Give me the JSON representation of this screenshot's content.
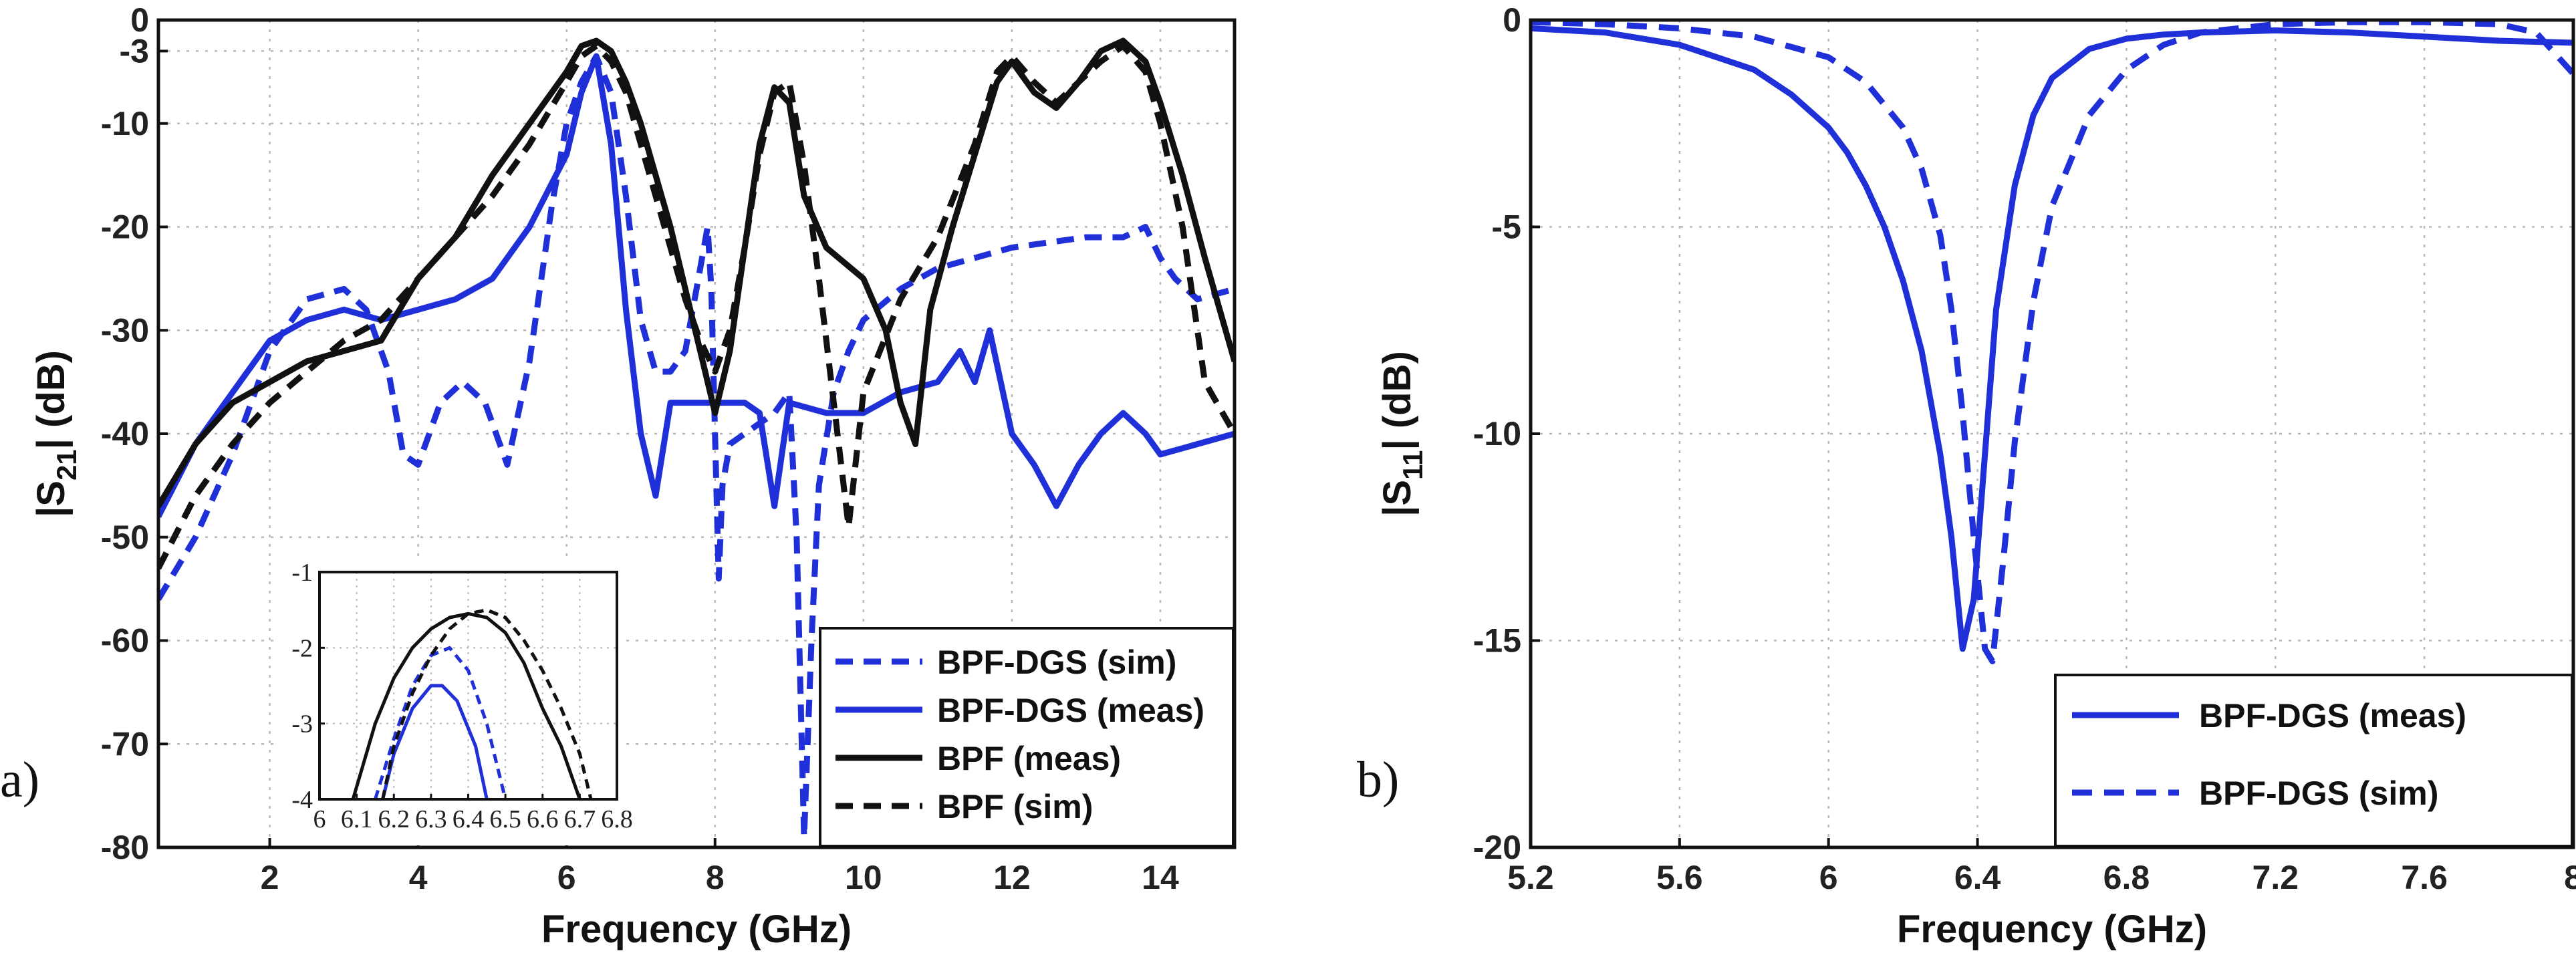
{
  "figure": {
    "panel_a_label": "a)",
    "panel_b_label": "b)",
    "colors": {
      "blue": "#2030d8",
      "black": "#111111",
      "grid": "#b8b8b8"
    }
  },
  "chart_data": [
    {
      "type": "line",
      "id": "s21",
      "title": "",
      "xlabel": "Frequency (GHz)",
      "ylabel": "|S21| (dB)",
      "xlim": [
        0.5,
        15
      ],
      "ylim": [
        -80,
        0
      ],
      "xticks": [
        2,
        4,
        6,
        8,
        10,
        12,
        14
      ],
      "yticks": [
        0,
        -3,
        -10,
        -20,
        -30,
        -40,
        -50,
        -60,
        -70,
        -80
      ],
      "grid": true,
      "legend_position": "bottom-right",
      "series": [
        {
          "name": "BPF-DGS (sim)",
          "color": "#2030d8",
          "dash": true,
          "x": [
            0.5,
            1,
            1.5,
            2,
            2.5,
            3,
            3.3,
            3.6,
            3.8,
            4,
            4.3,
            4.6,
            4.9,
            5.2,
            5.5,
            5.8,
            6.0,
            6.2,
            6.4,
            6.6,
            6.8,
            7.0,
            7.2,
            7.4,
            7.6,
            7.8,
            7.9,
            7.95,
            8.05,
            8.1,
            8.2,
            8.4,
            8.6,
            8.8,
            9,
            9.1,
            9.2,
            9.3,
            9.4,
            9.6,
            9.8,
            10,
            10.5,
            11,
            11.5,
            12,
            12.5,
            13,
            13.5,
            13.8,
            14,
            14.2,
            14.5,
            15
          ],
          "y": [
            -56,
            -50,
            -42,
            -32,
            -27,
            -26,
            -28,
            -34,
            -42,
            -43,
            -37,
            -35,
            -37,
            -43,
            -33,
            -18,
            -10,
            -6,
            -3.5,
            -7,
            -17,
            -29,
            -34,
            -34,
            -32,
            -24,
            -20,
            -26,
            -54,
            -45,
            -41,
            -40,
            -39,
            -38,
            -36,
            -50,
            -79,
            -60,
            -45,
            -36,
            -32,
            -29,
            -26,
            -24,
            -23,
            -22,
            -21.5,
            -21,
            -21,
            -20,
            -23,
            -25,
            -27,
            -26
          ]
        },
        {
          "name": "BPF-DGS (meas)",
          "color": "#2030d8",
          "dash": false,
          "x": [
            0.5,
            1,
            1.5,
            2,
            2.5,
            3,
            3.5,
            4,
            4.5,
            5,
            5.5,
            6.0,
            6.2,
            6.4,
            6.6,
            6.8,
            7.0,
            7.2,
            7.4,
            7.6,
            8,
            8.4,
            8.6,
            8.8,
            9,
            9.5,
            10,
            10.5,
            11,
            11.3,
            11.5,
            11.7,
            12,
            12.3,
            12.6,
            12.9,
            13.2,
            13.5,
            13.8,
            14,
            14.5,
            15
          ],
          "y": [
            -48,
            -41,
            -36,
            -31,
            -29,
            -28,
            -29,
            -28,
            -27,
            -25,
            -20,
            -13,
            -7,
            -3.5,
            -12,
            -28,
            -40,
            -46,
            -37,
            -37,
            -37,
            -37,
            -38,
            -47,
            -37,
            -38,
            -38,
            -36,
            -35,
            -32,
            -35,
            -30,
            -40,
            -43,
            -47,
            -43,
            -40,
            -38,
            -40,
            -42,
            -41,
            -40
          ]
        },
        {
          "name": "BPF (meas)",
          "color": "#111111",
          "dash": false,
          "x": [
            0.5,
            1,
            1.5,
            2,
            2.5,
            3,
            3.5,
            4,
            4.5,
            5,
            5.5,
            6,
            6.2,
            6.4,
            6.6,
            6.8,
            7,
            7.2,
            7.4,
            7.6,
            7.8,
            8,
            8.2,
            8.4,
            8.6,
            8.8,
            9,
            9.2,
            9.5,
            10,
            10.3,
            10.5,
            10.7,
            10.9,
            11.2,
            11.5,
            11.8,
            12,
            12.3,
            12.6,
            12.9,
            13.2,
            13.5,
            13.8,
            14,
            14.3,
            14.6,
            15
          ],
          "y": [
            -47,
            -41,
            -37,
            -35,
            -33,
            -32,
            -31,
            -25,
            -21,
            -15,
            -10,
            -5,
            -2.5,
            -2,
            -3,
            -6,
            -10,
            -15,
            -20,
            -26,
            -32,
            -38,
            -32,
            -22,
            -12,
            -6.5,
            -8,
            -17,
            -22,
            -25,
            -30,
            -37,
            -41,
            -28,
            -20,
            -13,
            -6,
            -4,
            -7,
            -8.5,
            -6,
            -3,
            -2,
            -4,
            -8,
            -15,
            -23,
            -33
          ]
        },
        {
          "name": "BPF (sim)",
          "color": "#111111",
          "dash": true,
          "x": [
            0.5,
            1,
            1.5,
            2,
            2.5,
            3,
            3.5,
            4,
            4.5,
            5,
            5.5,
            6,
            6.2,
            6.4,
            6.6,
            6.8,
            7,
            7.2,
            7.4,
            7.6,
            7.8,
            8,
            8.2,
            8.4,
            8.6,
            8.8,
            9,
            9.2,
            9.4,
            9.6,
            9.8,
            10,
            10.5,
            11,
            11.5,
            11.8,
            12,
            12.3,
            12.6,
            12.9,
            13.2,
            13.5,
            13.8,
            14,
            14.3,
            14.6,
            15
          ],
          "y": [
            -53,
            -46,
            -41,
            -37,
            -34,
            -31,
            -29,
            -25,
            -21,
            -17,
            -12,
            -6,
            -3.5,
            -2.5,
            -4,
            -7,
            -12,
            -17,
            -22,
            -27,
            -31,
            -34,
            -30,
            -22,
            -13,
            -7,
            -6,
            -14,
            -25,
            -37,
            -49,
            -36,
            -27,
            -21,
            -12,
            -5,
            -3.5,
            -6,
            -8,
            -6,
            -4,
            -2.5,
            -5,
            -10,
            -20,
            -35,
            -40
          ]
        }
      ]
    },
    {
      "type": "line",
      "id": "s21-inset",
      "title": "",
      "xlabel": "",
      "ylabel": "",
      "xlim": [
        6,
        6.8
      ],
      "ylim": [
        -4,
        -1
      ],
      "xticks": [
        6,
        6.1,
        6.2,
        6.3,
        6.4,
        6.5,
        6.6,
        6.7,
        6.8
      ],
      "yticks": [
        -1,
        -2,
        -3,
        -4
      ],
      "grid": true,
      "series": [
        {
          "name": "BPF-DGS (sim)",
          "color": "#2030d8",
          "dash": true,
          "x": [
            6.15,
            6.2,
            6.25,
            6.3,
            6.35,
            6.4,
            6.45,
            6.5
          ],
          "y": [
            -4,
            -3.2,
            -2.5,
            -2.1,
            -2.0,
            -2.3,
            -3.0,
            -4
          ]
        },
        {
          "name": "BPF-DGS (meas)",
          "color": "#2030d8",
          "dash": false,
          "x": [
            6.17,
            6.2,
            6.25,
            6.3,
            6.33,
            6.37,
            6.42,
            6.45
          ],
          "y": [
            -4,
            -3.4,
            -2.8,
            -2.5,
            -2.5,
            -2.7,
            -3.3,
            -4
          ]
        },
        {
          "name": "BPF (meas)",
          "color": "#111111",
          "dash": false,
          "x": [
            6.09,
            6.15,
            6.2,
            6.25,
            6.3,
            6.35,
            6.4,
            6.45,
            6.5,
            6.55,
            6.6,
            6.65,
            6.7
          ],
          "y": [
            -4,
            -3.0,
            -2.4,
            -2.0,
            -1.75,
            -1.6,
            -1.55,
            -1.6,
            -1.8,
            -2.2,
            -2.8,
            -3.3,
            -4
          ]
        },
        {
          "name": "BPF (sim)",
          "color": "#111111",
          "dash": true,
          "x": [
            6.17,
            6.2,
            6.25,
            6.3,
            6.35,
            6.4,
            6.45,
            6.5,
            6.55,
            6.6,
            6.65,
            6.7,
            6.73
          ],
          "y": [
            -4,
            -3.3,
            -2.6,
            -2.1,
            -1.75,
            -1.55,
            -1.5,
            -1.6,
            -1.9,
            -2.3,
            -2.8,
            -3.4,
            -4
          ]
        }
      ]
    },
    {
      "type": "line",
      "id": "s11",
      "title": "",
      "xlabel": "Frequency (GHz)",
      "ylabel": "|S11| (dB)",
      "xlim": [
        5.2,
        8
      ],
      "ylim": [
        -20,
        0
      ],
      "xticks": [
        5.2,
        5.6,
        6,
        6.4,
        6.8,
        7.2,
        7.6,
        8
      ],
      "yticks": [
        0,
        -5,
        -10,
        -15,
        -20
      ],
      "grid": true,
      "legend_position": "bottom-right",
      "series": [
        {
          "name": "BPF-DGS (meas)",
          "color": "#2030d8",
          "dash": false,
          "x": [
            5.2,
            5.4,
            5.6,
            5.8,
            5.9,
            6.0,
            6.05,
            6.1,
            6.15,
            6.2,
            6.25,
            6.3,
            6.33,
            6.36,
            6.39,
            6.42,
            6.45,
            6.5,
            6.55,
            6.6,
            6.7,
            6.8,
            6.9,
            7.0,
            7.2,
            7.4,
            7.6,
            7.8,
            8.0
          ],
          "y": [
            -0.2,
            -0.3,
            -0.6,
            -1.2,
            -1.8,
            -2.6,
            -3.2,
            -4,
            -5,
            -6.3,
            -8,
            -10.5,
            -12.5,
            -15.2,
            -14,
            -10.5,
            -7,
            -4,
            -2.3,
            -1.4,
            -0.7,
            -0.45,
            -0.35,
            -0.3,
            -0.25,
            -0.3,
            -0.4,
            -0.5,
            -0.55
          ]
        },
        {
          "name": "BPF-DGS (sim)",
          "color": "#2030d8",
          "dash": true,
          "x": [
            5.2,
            5.4,
            5.6,
            5.8,
            6.0,
            6.1,
            6.2,
            6.25,
            6.3,
            6.33,
            6.36,
            6.39,
            6.42,
            6.44,
            6.47,
            6.5,
            6.55,
            6.6,
            6.7,
            6.8,
            6.9,
            7.0,
            7.2,
            7.4,
            7.6,
            7.8,
            7.9,
            8.0
          ],
          "y": [
            -0.05,
            -0.1,
            -0.2,
            -0.4,
            -0.9,
            -1.5,
            -2.6,
            -3.6,
            -5.2,
            -7,
            -9.5,
            -12.5,
            -15.2,
            -15.5,
            -13,
            -10.2,
            -6.8,
            -4.5,
            -2.3,
            -1.2,
            -0.6,
            -0.3,
            -0.1,
            -0.05,
            -0.05,
            -0.1,
            -0.3,
            -1.3
          ]
        }
      ]
    }
  ]
}
